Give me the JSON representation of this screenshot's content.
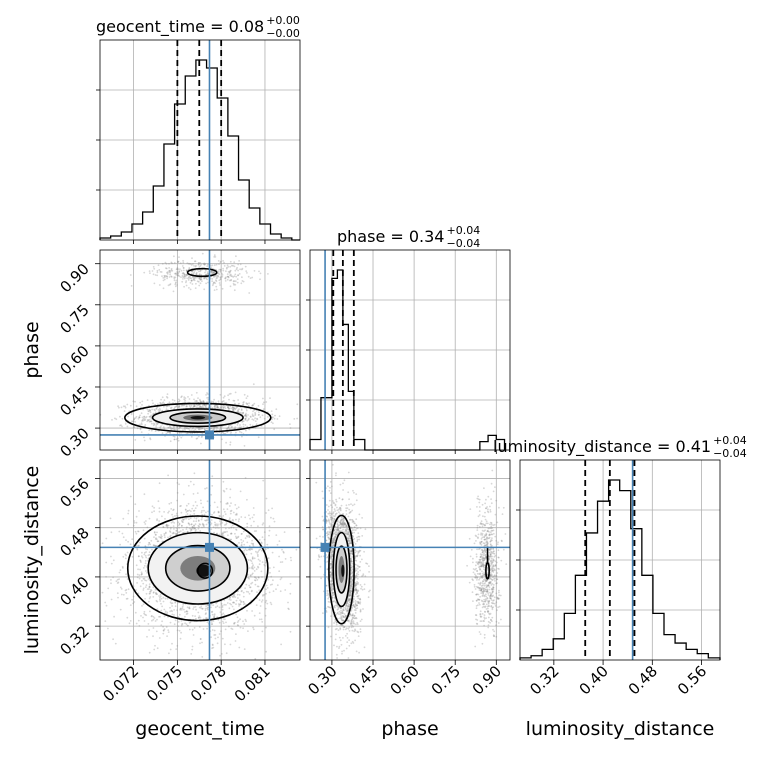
{
  "chart_data": {
    "type": "corner",
    "parameters": [
      "geocent_time",
      "phase",
      "luminosity_distance"
    ],
    "truths": {
      "geocent_time": 0.0772,
      "phase": 0.275,
      "luminosity_distance": 0.448
    },
    "ranges": {
      "geocent_time": [
        0.0697,
        0.0834
      ],
      "phase": [
        0.22,
        0.95
      ],
      "luminosity_distance": [
        0.265,
        0.59
      ]
    },
    "ticks": {
      "geocent_time": [
        0.072,
        0.075,
        0.078,
        0.081
      ],
      "phase": [
        0.3,
        0.45,
        0.6,
        0.75,
        0.9
      ],
      "luminosity_distance": [
        0.32,
        0.4,
        0.48,
        0.56
      ]
    },
    "tick_labels": {
      "geocent_time": [
        "0.072",
        "0.075",
        "0.078",
        "0.081"
      ],
      "phase": [
        "0.30",
        "0.45",
        "0.60",
        "0.75",
        "0.90"
      ],
      "luminosity_distance": [
        "0.32",
        "0.40",
        "0.48",
        "0.56"
      ]
    },
    "axis_labels": {
      "geocent_time": "geocent_time",
      "phase": "phase",
      "luminosity_distance": "luminosity_distance"
    },
    "titles": [
      {
        "param": "geocent_time",
        "main": "geocent_time = 0.08",
        "sup": "+0.00",
        "sub": "−0.00"
      },
      {
        "param": "phase",
        "main": "phase = 0.34",
        "sup": "+0.04",
        "sub": "−0.04"
      },
      {
        "param": "luminosity_distance",
        "main": "luminosity_distance = 0.41",
        "sup": "+0.04",
        "sub": "−0.04"
      }
    ],
    "quantiles": {
      "geocent_time": [
        0.075,
        0.0765,
        0.078
      ],
      "phase": [
        0.305,
        0.34,
        0.38
      ],
      "luminosity_distance": [
        0.371,
        0.411,
        0.451
      ]
    },
    "histograms": {
      "geocent_time": {
        "edges": [
          0.0697,
          0.07043,
          0.07116,
          0.07189,
          0.07262,
          0.07335,
          0.07408,
          0.07481,
          0.07554,
          0.07627,
          0.077,
          0.07773,
          0.07846,
          0.07919,
          0.07992,
          0.08065,
          0.08138,
          0.08211,
          0.08284,
          0.0834
        ],
        "counts": [
          0.01,
          0.02,
          0.04,
          0.08,
          0.14,
          0.27,
          0.48,
          0.68,
          0.82,
          0.9,
          0.86,
          0.71,
          0.52,
          0.3,
          0.16,
          0.08,
          0.03,
          0.01,
          0.0
        ]
      },
      "phase": {
        "edges": [
          0.22,
          0.26,
          0.3,
          0.32,
          0.34,
          0.36,
          0.38,
          0.42,
          0.46,
          0.84,
          0.87,
          0.9,
          0.93
        ],
        "counts": [
          0.05,
          0.25,
          0.82,
          0.86,
          0.6,
          0.28,
          0.05,
          0.0,
          0.0,
          0.04,
          0.07,
          0.05
        ],
        "secondary_mode_note": "small bump near 0.85-0.92"
      },
      "luminosity_distance": {
        "edges": [
          0.265,
          0.283,
          0.301,
          0.319,
          0.337,
          0.355,
          0.373,
          0.391,
          0.409,
          0.427,
          0.445,
          0.463,
          0.481,
          0.499,
          0.517,
          0.535,
          0.553,
          0.571,
          0.59
        ],
        "counts": [
          0.01,
          0.02,
          0.05,
          0.1,
          0.22,
          0.4,
          0.6,
          0.75,
          0.85,
          0.8,
          0.62,
          0.4,
          0.22,
          0.12,
          0.08,
          0.05,
          0.03,
          0.01
        ]
      }
    },
    "grid": true
  }
}
